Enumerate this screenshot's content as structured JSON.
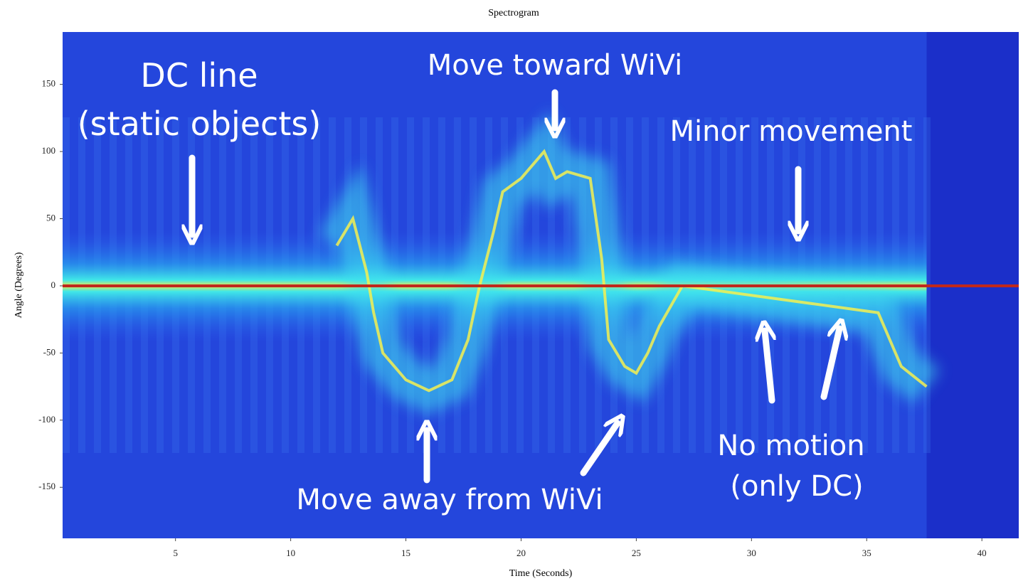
{
  "chart_data": {
    "type": "spectrogram",
    "title": "Spectrogram",
    "x_label": "Time (Seconds)",
    "y_label": "Angle (Degrees)",
    "xlim": [
      0.1,
      41.6
    ],
    "ylim": [
      -188,
      189
    ],
    "xticks": [
      5,
      10,
      15,
      20,
      25,
      30,
      35,
      40
    ],
    "yticks": [
      -150,
      -100,
      -50,
      0,
      50,
      100,
      150
    ],
    "reference_line": 0,
    "reference_color": "#c0281c",
    "trace_color": "#f4f050",
    "x": [
      0.1,
      12,
      12.7,
      13.3,
      13.6,
      14,
      15,
      16,
      17,
      17.7,
      18.2,
      18.8,
      19.2,
      20,
      21,
      21.5,
      22,
      23,
      23.5,
      23.8,
      24.5,
      25,
      25.5,
      26,
      27,
      35.5,
      36.5,
      37.6
    ],
    "values": [
      null,
      30,
      50,
      10,
      -20,
      -50,
      -70,
      -78,
      -70,
      -40,
      0,
      40,
      70,
      80,
      100,
      80,
      85,
      80,
      20,
      -40,
      -60,
      -65,
      -50,
      -30,
      0,
      -20,
      -60,
      -75
    ],
    "annotations": [
      "DC line",
      "(static objects)",
      "Move toward WiVi",
      "Minor movement",
      "Move away from WiVi",
      "No motion",
      "(only DC)"
    ]
  }
}
